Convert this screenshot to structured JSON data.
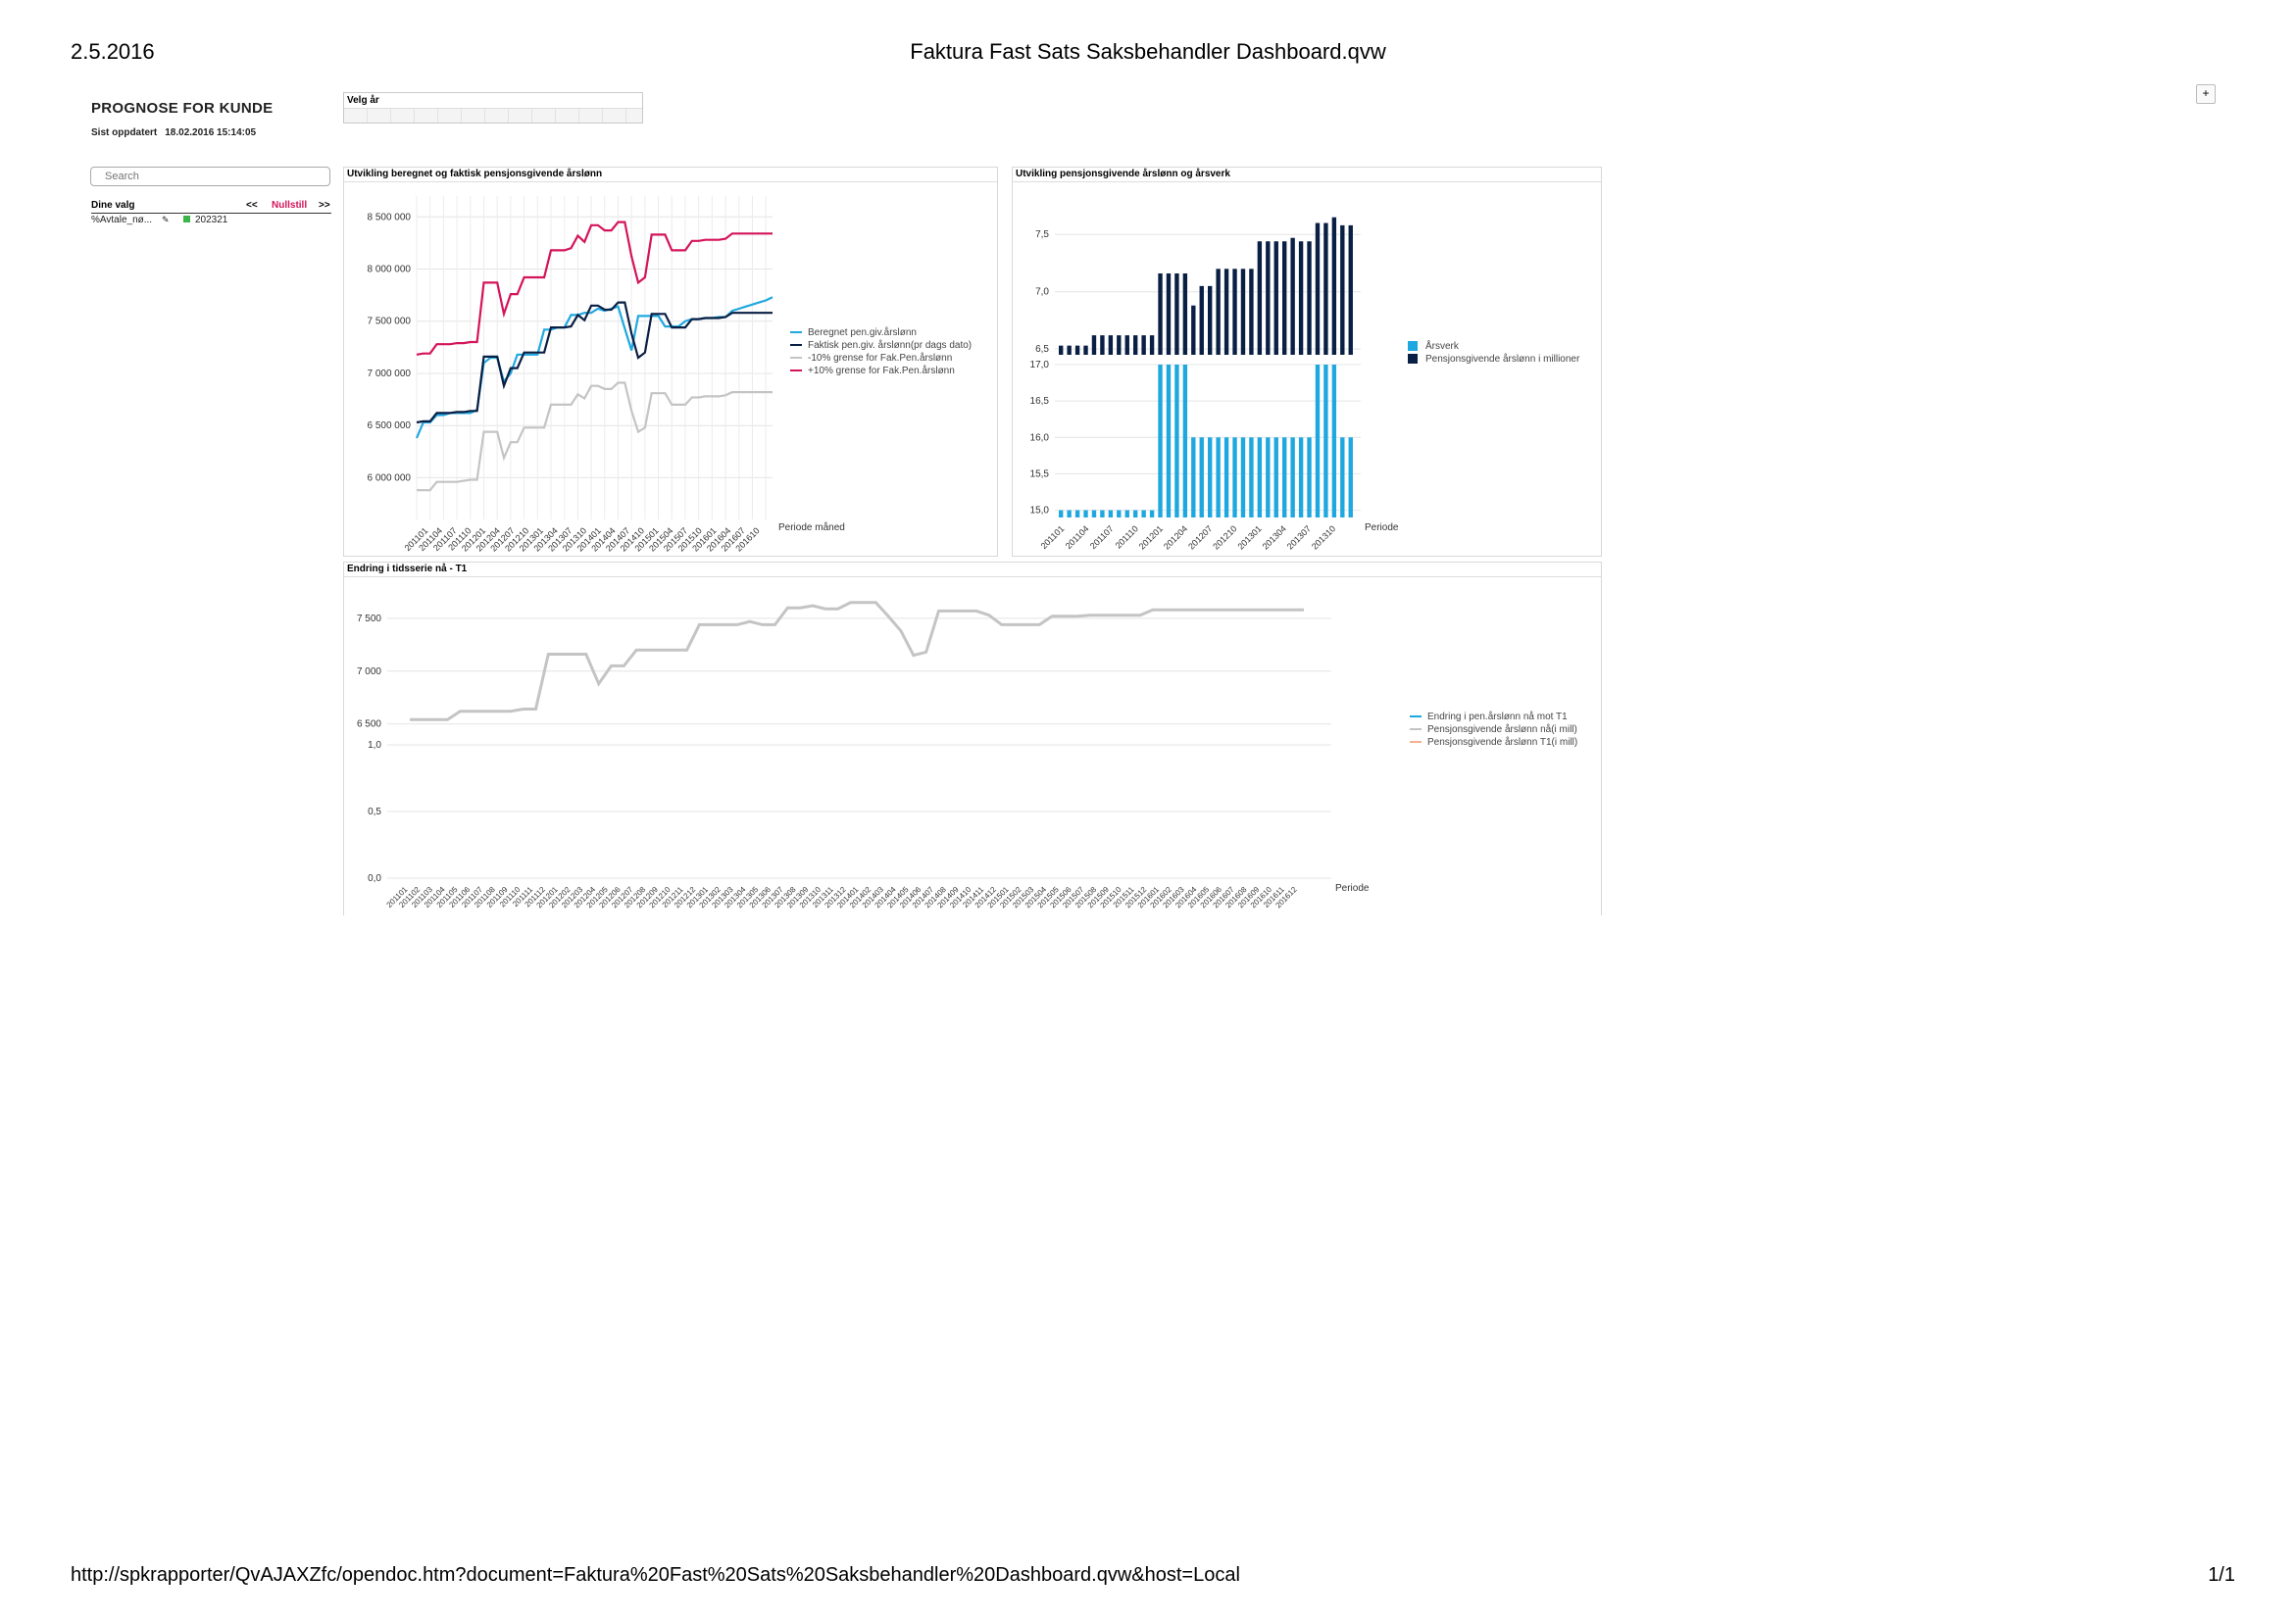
{
  "print_header": {
    "date": "2.5.2016",
    "title": "Faktura Fast Sats Saksbehandler Dashboard.qvw"
  },
  "print_footer": {
    "url": "http://spkrapporter/QvAJAXZfc/opendoc.htm?document=Faktura%20Fast%20Sats%20Saksbehandler%20Dashboard.qvw&host=Local",
    "page": "1/1"
  },
  "app": {
    "title": "PROGNOSE FOR KUNDE",
    "updated_label": "Sist oppdatert",
    "updated_value": "18.02.2016 15:14:05",
    "plus": "+"
  },
  "year_selector": {
    "label": "Velg år"
  },
  "search": {
    "placeholder": "Search"
  },
  "selections": {
    "title": "Dine valg",
    "prev": "<<",
    "reset": "Nullstill",
    "next": ">>",
    "items": [
      {
        "field": "%Avtale_nø...",
        "value": "202321"
      }
    ]
  },
  "colors": {
    "cyan": "#1fa8df",
    "navy": "#0a1f44",
    "gray": "#c4c4c4",
    "crimson": "#d4145a",
    "orange": "#f4b090",
    "reset": "#d4145a"
  },
  "panels": {
    "chart1": {
      "caption": "Utvikling beregnet og faktisk pensjonsgivende årslønn"
    },
    "chart2": {
      "caption": "Utvikling pensjonsgivende årslønn og årsverk"
    },
    "chart3": {
      "caption": "Endring i tidsserie nå - T1"
    }
  },
  "chart_data": [
    {
      "type": "line",
      "title": "Utvikling beregnet og faktisk pensjonsgivende årslønn",
      "xlabel": "Periode måned",
      "ylim": [
        5600000,
        8700000
      ],
      "yticks": [
        "6 000 000",
        "6 500 000",
        "7 000 000",
        "7 500 000",
        "8 000 000",
        "8 500 000"
      ],
      "xtick_labels": [
        "201101",
        "201104",
        "201107",
        "201110",
        "201201",
        "201204",
        "201207",
        "201210",
        "201301",
        "201304",
        "201307",
        "201310",
        "201401",
        "201404",
        "201407",
        "201410",
        "201501",
        "201504",
        "201507",
        "201510",
        "201601",
        "201604",
        "201607",
        "201610"
      ],
      "legend": "right",
      "series": [
        {
          "name": "Beregnet pen.giv.årslønn",
          "color": "#1fa8df",
          "values": [
            6380000,
            6530000,
            6530000,
            6600000,
            6600000,
            6620000,
            6620000,
            6620000,
            6620000,
            6650000,
            7100000,
            7150000,
            7150000,
            6920000,
            7000000,
            7180000,
            7180000,
            7180000,
            7180000,
            7420000,
            7420000,
            7440000,
            7440000,
            7560000,
            7560000,
            7580000,
            7580000,
            7620000,
            7600000,
            7620000,
            7640000,
            7430000,
            7220000,
            7550000,
            7550000,
            7550000,
            7550000,
            7450000,
            7450000,
            7450000,
            7500000,
            7520000,
            7520000,
            7530000,
            7530000,
            7540000,
            7540000,
            7600000,
            7620000,
            7640000,
            7660000,
            7680000,
            7700000,
            7730000
          ]
        },
        {
          "name": "Faktisk pen.giv. årslønn(pr dags dato)",
          "color": "#0a1f44",
          "values": [
            6530000,
            6540000,
            6540000,
            6620000,
            6620000,
            6620000,
            6630000,
            6630000,
            6640000,
            6640000,
            7160000,
            7160000,
            7160000,
            6880000,
            7050000,
            7050000,
            7200000,
            7200000,
            7200000,
            7200000,
            7440000,
            7440000,
            7440000,
            7450000,
            7560000,
            7510000,
            7650000,
            7650000,
            7610000,
            7610000,
            7680000,
            7680000,
            7380000,
            7150000,
            7200000,
            7570000,
            7570000,
            7570000,
            7440000,
            7440000,
            7440000,
            7520000,
            7520000,
            7530000,
            7530000,
            7530000,
            7540000,
            7580000,
            7580000,
            7580000,
            7580000,
            7580000,
            7580000,
            7580000
          ]
        },
        {
          "name": "-10% grense for Fak.Pen.årslønn",
          "color": "#c4c4c4",
          "values": [
            5880000,
            5880000,
            5880000,
            5960000,
            5960000,
            5960000,
            5960000,
            5970000,
            5980000,
            5980000,
            6440000,
            6440000,
            6440000,
            6190000,
            6340000,
            6340000,
            6480000,
            6480000,
            6480000,
            6480000,
            6700000,
            6700000,
            6700000,
            6700000,
            6800000,
            6760000,
            6880000,
            6880000,
            6850000,
            6850000,
            6910000,
            6910000,
            6640000,
            6440000,
            6480000,
            6810000,
            6810000,
            6810000,
            6700000,
            6700000,
            6700000,
            6770000,
            6770000,
            6780000,
            6780000,
            6780000,
            6790000,
            6820000,
            6820000,
            6820000,
            6820000,
            6820000,
            6820000,
            6820000
          ]
        },
        {
          "name": "+10% grense for Fak.Pen.årslønn",
          "color": "#d4145a",
          "values": [
            7180000,
            7190000,
            7190000,
            7280000,
            7280000,
            7280000,
            7290000,
            7290000,
            7300000,
            7300000,
            7870000,
            7870000,
            7870000,
            7570000,
            7760000,
            7760000,
            7920000,
            7920000,
            7920000,
            7920000,
            8180000,
            8180000,
            8180000,
            8200000,
            8320000,
            8260000,
            8420000,
            8420000,
            8370000,
            8370000,
            8450000,
            8450000,
            8120000,
            7870000,
            7920000,
            8330000,
            8330000,
            8330000,
            8180000,
            8180000,
            8180000,
            8270000,
            8270000,
            8280000,
            8280000,
            8280000,
            8290000,
            8340000,
            8340000,
            8340000,
            8340000,
            8340000,
            8340000,
            8340000
          ]
        }
      ]
    },
    {
      "type": "bar",
      "title": "Utvikling pensjonsgivende årslønn og årsverk",
      "xlabel": "Periode",
      "xtick_labels": [
        "201101",
        "201104",
        "201107",
        "201110",
        "201201",
        "201204",
        "201207",
        "201210",
        "201301",
        "201304",
        "201307",
        "201310"
      ],
      "legend": "right",
      "upper": {
        "ylim": [
          6.45,
          7.75
        ],
        "yticks": [
          "6,5",
          "7,0",
          "7,5"
        ],
        "series": [
          {
            "name": "Pensjonsgivende årslønn i millioner",
            "color": "#0a1f44",
            "values": [
              6.53,
              6.53,
              6.53,
              6.53,
              6.62,
              6.62,
              6.62,
              6.62,
              6.62,
              6.62,
              6.62,
              6.62,
              7.16,
              7.16,
              7.16,
              7.16,
              6.88,
              7.05,
              7.05,
              7.2,
              7.2,
              7.2,
              7.2,
              7.2,
              7.44,
              7.44,
              7.44,
              7.44,
              7.47,
              7.44,
              7.44,
              7.6,
              7.6,
              7.65,
              7.58,
              7.58
            ]
          }
        ]
      },
      "lower": {
        "ylim": [
          14.9,
          17.0
        ],
        "yticks": [
          "15,0",
          "15,5",
          "16,0",
          "16,5",
          "17,0"
        ],
        "series": [
          {
            "name": "Årsverk",
            "color": "#1fa8df",
            "values": [
              15,
              15,
              15,
              15,
              15,
              15,
              15,
              15,
              15,
              15,
              15,
              15,
              17,
              17,
              17,
              17,
              16,
              16,
              16,
              16,
              16,
              16,
              16,
              16,
              16,
              16,
              16,
              16,
              16,
              16,
              16,
              17,
              17,
              17,
              16,
              16
            ]
          }
        ]
      }
    },
    {
      "type": "line",
      "title": "Endring i tidsserie nå - T1",
      "xlabel": "Periode",
      "legend": "right",
      "upper": {
        "ylim": [
          6450,
          7750
        ],
        "yticks": [
          "6 500",
          "7 000",
          "7 500"
        ],
        "series": [
          {
            "name": "Pensjonsgivende årslønn nå(i mill)",
            "color": "#c4c4c4",
            "values": [
              6540,
              6540,
              6540,
              6540,
              6620,
              6620,
              6620,
              6620,
              6620,
              6640,
              6640,
              7160,
              7160,
              7160,
              7160,
              6880,
              7050,
              7050,
              7200,
              7200,
              7200,
              7200,
              7200,
              7440,
              7440,
              7440,
              7440,
              7470,
              7440,
              7440,
              7600,
              7600,
              7620,
              7590,
              7590,
              7650,
              7650,
              7650,
              7520,
              7380,
              7150,
              7180,
              7570,
              7570,
              7570,
              7570,
              7530,
              7440,
              7440,
              7440,
              7440,
              7520,
              7520,
              7520,
              7530,
              7530,
              7530,
              7530,
              7530,
              7580,
              7580,
              7580,
              7580,
              7580,
              7580,
              7580,
              7580,
              7580,
              7580,
              7580,
              7580,
              7580
            ]
          }
        ]
      },
      "lower": {
        "ylim": [
          0,
          1.0
        ],
        "yticks": [
          "0,0",
          "0,5",
          "1,0"
        ],
        "series": [
          {
            "name": "Endring i pen.årslønn nå mot T1",
            "color": "#1fa8df",
            "values": []
          },
          {
            "name": "Pensjonsgivende årslønn T1(i mill)",
            "color": "#f4b090",
            "values": []
          }
        ]
      },
      "xtick_labels": [
        "201101",
        "201102",
        "201103",
        "201104",
        "201105",
        "201106",
        "201107",
        "201108",
        "201109",
        "201110",
        "201111",
        "201112",
        "201201",
        "201202",
        "201203",
        "201204",
        "201205",
        "201206",
        "201207",
        "201208",
        "201209",
        "201210",
        "201211",
        "201212",
        "201301",
        "201302",
        "201303",
        "201304",
        "201305",
        "201306",
        "201307",
        "201308",
        "201309",
        "201310",
        "201311",
        "201312",
        "201401",
        "201402",
        "201403",
        "201404",
        "201405",
        "201406",
        "201407",
        "201408",
        "201409",
        "201410",
        "201411",
        "201412",
        "201501",
        "201502",
        "201503",
        "201504",
        "201505",
        "201506",
        "201507",
        "201508",
        "201509",
        "201510",
        "201511",
        "201512",
        "201601",
        "201602",
        "201603",
        "201604",
        "201605",
        "201606",
        "201607",
        "201608",
        "201609",
        "201610",
        "201611",
        "201612"
      ]
    }
  ]
}
